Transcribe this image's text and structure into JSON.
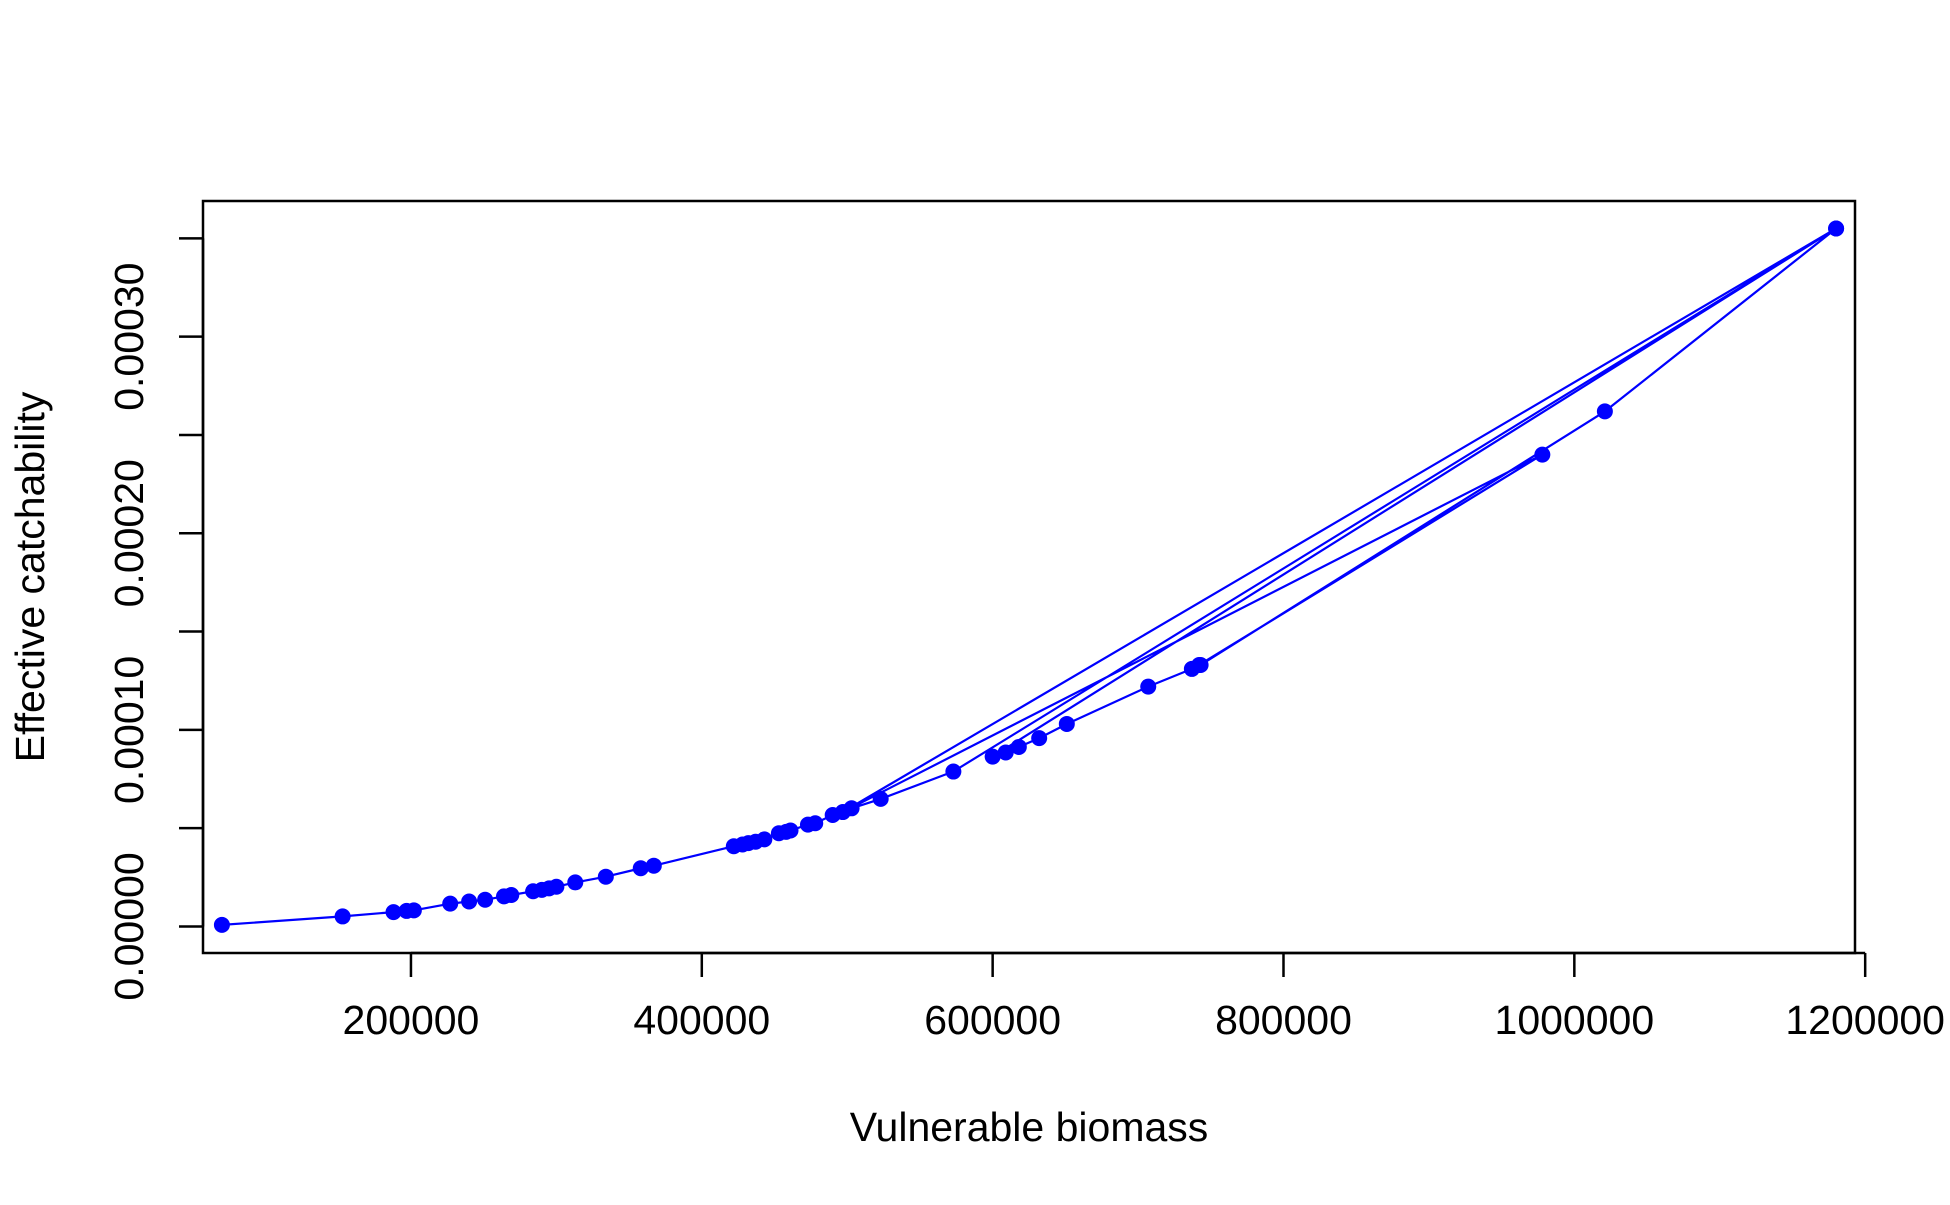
{
  "chart_data": {
    "type": "scatter",
    "connected": true,
    "title": "",
    "xlabel": "Vulnerable biomass",
    "ylabel": "Effective catchability",
    "xlim": [
      57000,
      1193000
    ],
    "ylim": [
      -1.35e-05,
      0.000369
    ],
    "x_ticks": [
      200000,
      400000,
      600000,
      800000,
      1000000,
      1200000
    ],
    "x_tick_labels": [
      "200000",
      "400000",
      "600000",
      "800000",
      "1000000",
      "1200000"
    ],
    "y_ticks": [
      0,
      5e-05,
      0.0001,
      0.00015,
      0.0002,
      0.00025,
      0.0003,
      0.00035
    ],
    "y_tick_labels": [
      "0.00000",
      "",
      "0.00010",
      "",
      "0.00020",
      "",
      "0.00030",
      ""
    ],
    "grid": false,
    "legend": "none",
    "series_color": "#0000ff",
    "series": [
      {
        "x": [
          70000,
          153000,
          188000,
          197000,
          202000,
          227000,
          240000,
          251000,
          264000,
          269000,
          284000,
          290000,
          295000,
          300000,
          313000,
          334000,
          358000,
          367000,
          422000,
          428000,
          432000,
          437000,
          443000,
          453000,
          458000,
          461000,
          473000,
          478000,
          490000,
          503000,
          523000,
          573000,
          1180000,
          600000,
          609000,
          618000,
          632000,
          651000,
          707000,
          737000,
          742000,
          978000,
          497000,
          1180000,
          1021000,
          743000
        ],
        "y": [
          8e-07,
          5.1e-06,
          7.3e-06,
          7.9e-06,
          8.2e-06,
          1.16e-05,
          1.27e-05,
          1.36e-05,
          1.53e-05,
          1.6e-05,
          1.79e-05,
          1.86e-05,
          1.94e-05,
          2.02e-05,
          2.24e-05,
          2.53e-05,
          2.96e-05,
          3.09e-05,
          4.08e-05,
          4.17e-05,
          4.24e-05,
          4.31e-05,
          4.43e-05,
          4.74e-05,
          4.81e-05,
          4.88e-05,
          5.18e-05,
          5.25e-05,
          5.67e-05,
          6.01e-05,
          6.49e-05,
          7.88e-05,
          0.000355,
          8.64e-05,
          8.85e-05,
          9.13e-05,
          9.58e-05,
          0.000103,
          0.000122,
          0.000131,
          0.000133,
          0.00024,
          5.82e-05,
          0.000355,
          0.000262,
          0.000133
        ]
      }
    ]
  }
}
